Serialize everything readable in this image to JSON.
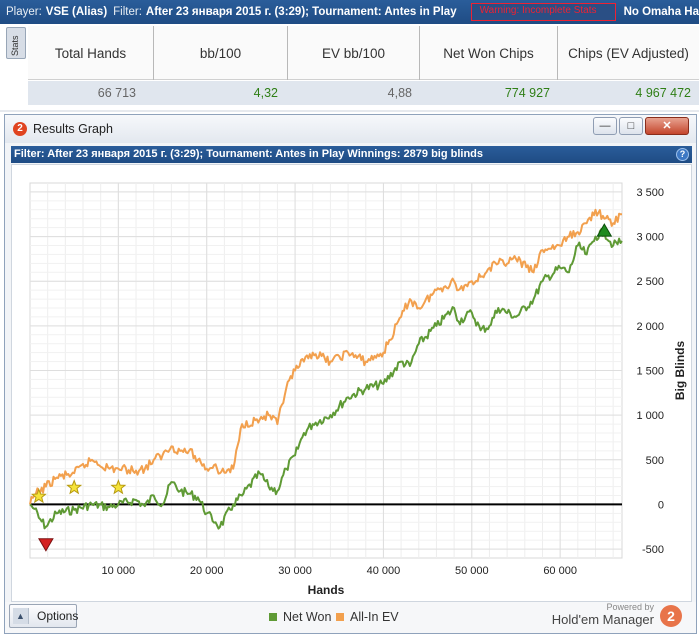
{
  "topbar": {
    "player_key": "Player:",
    "player_value": "VSE (Alias)",
    "filter_key": "Filter:",
    "filter_value": "After 23 января 2015 г. (3:29); Tournament: Antes in Play",
    "warning_text": "Warning: Incomplete Stats",
    "omaha_text": "No Omaha Ha"
  },
  "stats": {
    "tab_label": "Stats",
    "columns": [
      {
        "label": "Total Hands",
        "value": "66 713",
        "color": "#666666"
      },
      {
        "label": "bb/100",
        "value": "4,32",
        "color": "#2f7f16"
      },
      {
        "label": "EV bb/100",
        "value": "4,88",
        "color": "#666666"
      },
      {
        "label": "Net Won Chips",
        "value": "774 927",
        "color": "#2f7f16"
      },
      {
        "label": "Chips (EV Adjusted)",
        "value": "4 967 472",
        "color": "#2f7f16"
      }
    ]
  },
  "window": {
    "logo": "2",
    "title": "Results Graph",
    "minimize": "—",
    "maximize": "□",
    "close": "✕",
    "filter_text": "Filter: After 23 января 2015 г. (3:29); Tournament: Antes in Play   Winnings: 2879 big blinds",
    "help": "?"
  },
  "bottom": {
    "options_label": "Options",
    "options_icon": "▲",
    "legend_net": "Net Won",
    "legend_ev": "All-In EV",
    "powered_by": "Powered by",
    "brand": "Hold'em Manager",
    "brand_logo": "2"
  },
  "colors": {
    "net_won": "#5f9a35",
    "all_in_ev": "#f2a04e",
    "zero_line": "#000000",
    "max_marker": "#1f8a1f",
    "min_marker": "#d42020",
    "star": "#f5e33a"
  },
  "chart_data": {
    "type": "line",
    "xlabel": "Hands",
    "ylabel": "Big Blinds",
    "xlim": [
      0,
      67000
    ],
    "ylim": [
      -600,
      3600
    ],
    "x_ticks": [
      10000,
      20000,
      30000,
      40000,
      50000,
      60000
    ],
    "x_tick_labels": [
      "10 000",
      "20 000",
      "30 000",
      "40 000",
      "50 000",
      "60 000"
    ],
    "y_ticks": [
      -500,
      0,
      500,
      1000,
      1500,
      2000,
      2500,
      3000,
      3500
    ],
    "y_tick_labels": [
      "-500",
      "0",
      "500",
      "1 000",
      "1 500",
      "2 000",
      "2 500",
      "3 000",
      "3 500"
    ],
    "grid": true,
    "x": [
      0,
      500,
      1000,
      1800,
      3000,
      5000,
      7000,
      9000,
      10000,
      12000,
      13000,
      14000,
      15000,
      16000,
      17000,
      18000,
      19000,
      20000,
      21000,
      21500,
      23000,
      24000,
      26000,
      27000,
      28000,
      29000,
      30000,
      31000,
      32000,
      34000,
      36000,
      38000,
      40000,
      42000,
      43000,
      44000,
      46000,
      48000,
      48500,
      50000,
      51000,
      52000,
      53000,
      55000,
      57000,
      58000,
      60000,
      61000,
      62000,
      63000,
      64000,
      65000,
      66000,
      67000
    ],
    "series": [
      {
        "name": "Net Won",
        "values": [
          0,
          -50,
          -150,
          -250,
          -100,
          -60,
          0,
          -30,
          0,
          50,
          -20,
          100,
          0,
          250,
          150,
          120,
          80,
          -100,
          -200,
          -250,
          0,
          100,
          350,
          200,
          150,
          400,
          550,
          800,
          900,
          1000,
          1200,
          1300,
          1350,
          1600,
          1550,
          1800,
          2000,
          2200,
          2050,
          2150,
          1950,
          2000,
          2200,
          2100,
          2300,
          2500,
          2650,
          2600,
          2900,
          2800,
          3000,
          3050,
          2900,
          2950
        ]
      },
      {
        "name": "All-In EV",
        "values": [
          0,
          100,
          150,
          200,
          300,
          350,
          500,
          400,
          400,
          380,
          400,
          500,
          550,
          650,
          600,
          600,
          500,
          400,
          450,
          350,
          400,
          900,
          950,
          1000,
          900,
          1300,
          1500,
          1600,
          1700,
          1600,
          1700,
          1600,
          1700,
          2100,
          2300,
          2200,
          2400,
          2500,
          2400,
          2500,
          2550,
          2650,
          2700,
          2750,
          2600,
          2850,
          2900,
          3000,
          3050,
          3150,
          3300,
          3200,
          3150,
          3250
        ]
      }
    ],
    "markers": [
      {
        "type": "max",
        "x": 65000,
        "y": 3050
      },
      {
        "type": "min",
        "x": 1800,
        "y": -250
      },
      {
        "type": "star",
        "x": 1000,
        "y": 0
      },
      {
        "type": "star",
        "x": 5000,
        "y": 100
      },
      {
        "type": "star",
        "x": 10000,
        "y": 100
      }
    ]
  }
}
